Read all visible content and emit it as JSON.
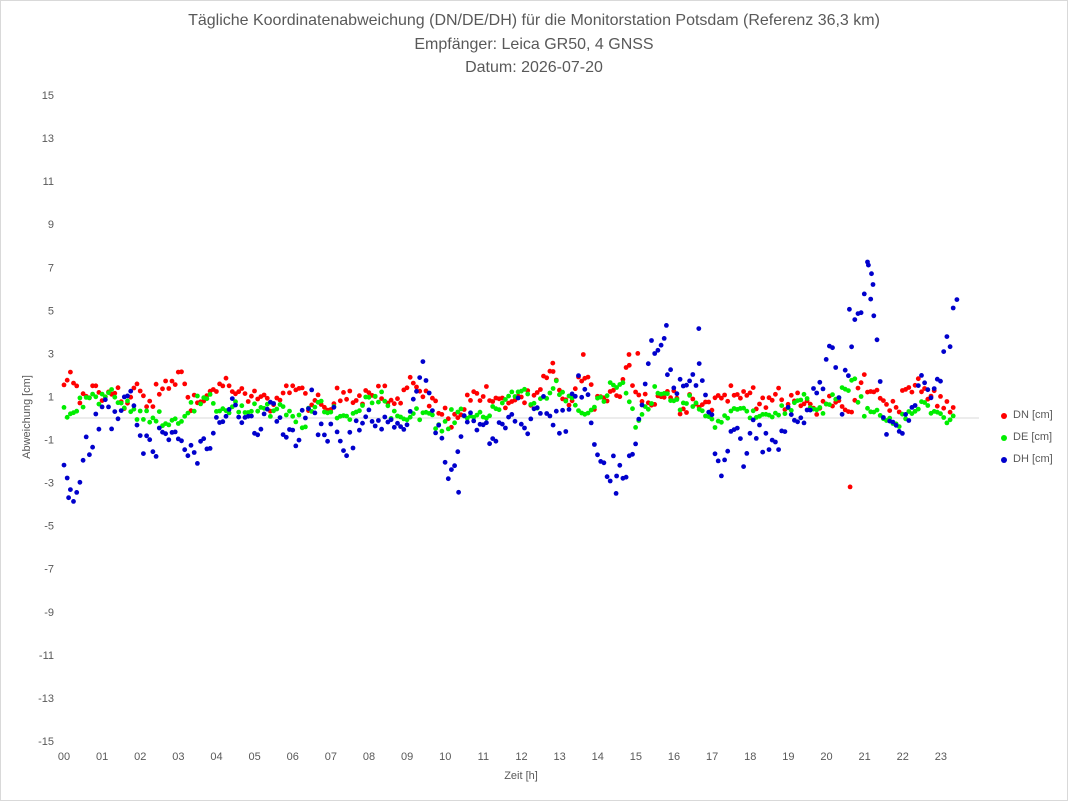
{
  "chart_data": {
    "type": "scatter",
    "title": "Tägliche Koordinatenabweichung (DN/DE/DH) für die Monitorstation Potsdam (Referenz 36,3 km)",
    "subtitle_1": "Empfänger: Leica GR50, 4 GNSS",
    "subtitle_2": "Datum: 2026-07-20",
    "xlabel": "Zeit [h]",
    "ylabel": "Abweichung [cm]",
    "xlim": [
      0,
      24
    ],
    "ylim": [
      -15,
      15
    ],
    "x_ticks": [
      "00",
      "01",
      "02",
      "03",
      "04",
      "05",
      "06",
      "07",
      "08",
      "09",
      "10",
      "11",
      "12",
      "13",
      "14",
      "15",
      "16",
      "17",
      "18",
      "19",
      "20",
      "21",
      "22",
      "23"
    ],
    "y_ticks": [
      15,
      13,
      11,
      9,
      7,
      5,
      3,
      1,
      -1,
      -3,
      -5,
      -7,
      -9,
      -11,
      -13,
      -15
    ],
    "legend_position": "right",
    "series": [
      {
        "name": "DN [cm]",
        "color": "#ff0000",
        "knots": [
          [
            0.0,
            1.3
          ],
          [
            0.2,
            2.0
          ],
          [
            0.4,
            0.8
          ],
          [
            0.8,
            1.4
          ],
          [
            1.0,
            0.9
          ],
          [
            1.3,
            1.6
          ],
          [
            1.6,
            0.4
          ],
          [
            1.9,
            1.4
          ],
          [
            2.2,
            0.6
          ],
          [
            2.5,
            1.2
          ],
          [
            2.8,
            1.6
          ],
          [
            3.05,
            2.1
          ],
          [
            3.3,
            1.0
          ],
          [
            3.6,
            0.6
          ],
          [
            3.9,
            1.4
          ],
          [
            4.2,
            1.6
          ],
          [
            4.5,
            1.2
          ],
          [
            4.8,
            0.8
          ],
          [
            5.1,
            1.0
          ],
          [
            5.4,
            0.6
          ],
          [
            5.7,
            1.2
          ],
          [
            6.0,
            1.4
          ],
          [
            6.3,
            1.0
          ],
          [
            6.6,
            0.6
          ],
          [
            6.9,
            0.3
          ],
          [
            7.2,
            1.0
          ],
          [
            7.5,
            1.3
          ],
          [
            7.8,
            0.9
          ],
          [
            8.1,
            1.5
          ],
          [
            8.4,
            1.1
          ],
          [
            8.7,
            0.6
          ],
          [
            9.0,
            1.3
          ],
          [
            9.3,
            1.6
          ],
          [
            9.6,
            0.8
          ],
          [
            9.9,
            0.2
          ],
          [
            10.2,
            0.0
          ],
          [
            10.5,
            0.6
          ],
          [
            10.8,
            1.2
          ],
          [
            11.1,
            1.0
          ],
          [
            11.4,
            0.6
          ],
          [
            11.7,
            0.8
          ],
          [
            12.0,
            1.0
          ],
          [
            12.3,
            0.6
          ],
          [
            12.6,
            1.6
          ],
          [
            12.8,
            2.2
          ],
          [
            13.0,
            1.0
          ],
          [
            13.3,
            0.8
          ],
          [
            13.6,
            2.0
          ],
          [
            13.9,
            1.0
          ],
          [
            14.2,
            0.8
          ],
          [
            14.5,
            0.9
          ],
          [
            14.8,
            2.8
          ],
          [
            15.0,
            1.2
          ],
          [
            15.3,
            0.8
          ],
          [
            15.6,
            1.0
          ],
          [
            15.9,
            1.2
          ],
          [
            16.2,
            0.6
          ],
          [
            16.5,
            1.0
          ],
          [
            16.8,
            0.6
          ],
          [
            17.1,
            0.8
          ],
          [
            17.4,
            1.2
          ],
          [
            17.7,
            0.9
          ],
          [
            18.0,
            1.3
          ],
          [
            18.3,
            0.8
          ],
          [
            18.6,
            1.0
          ],
          [
            18.9,
            0.6
          ],
          [
            19.2,
            0.8
          ],
          [
            19.5,
            0.6
          ],
          [
            19.8,
            0.4
          ],
          [
            20.1,
            0.9
          ],
          [
            20.4,
            0.6
          ],
          [
            20.6,
            0.0
          ],
          [
            20.8,
            1.2
          ],
          [
            21.0,
            1.8
          ],
          [
            21.3,
            1.0
          ],
          [
            21.6,
            0.6
          ],
          [
            21.9,
            0.8
          ],
          [
            22.2,
            1.6
          ],
          [
            22.5,
            1.2
          ],
          [
            22.8,
            1.0
          ],
          [
            23.1,
            0.6
          ],
          [
            23.4,
            0.2
          ]
        ],
        "outliers": [
          [
            20.62,
            -3.2
          ],
          [
            15.05,
            3.0
          ],
          [
            14.82,
            2.95
          ],
          [
            13.62,
            2.95
          ],
          [
            12.82,
            2.55
          ]
        ]
      },
      {
        "name": "DE [cm]",
        "color": "#00ee00",
        "knots": [
          [
            0.0,
            0.2
          ],
          [
            0.3,
            0.3
          ],
          [
            0.6,
            1.2
          ],
          [
            0.9,
            0.8
          ],
          [
            1.2,
            1.4
          ],
          [
            1.5,
            0.6
          ],
          [
            1.8,
            0.3
          ],
          [
            2.1,
            0.0
          ],
          [
            2.4,
            0.2
          ],
          [
            2.7,
            -0.2
          ],
          [
            3.0,
            0.0
          ],
          [
            3.3,
            0.4
          ],
          [
            3.6,
            0.8
          ],
          [
            3.9,
            0.6
          ],
          [
            4.2,
            0.4
          ],
          [
            4.5,
            0.6
          ],
          [
            4.8,
            0.3
          ],
          [
            5.1,
            0.5
          ],
          [
            5.4,
            0.2
          ],
          [
            5.7,
            0.4
          ],
          [
            6.0,
            0.0
          ],
          [
            6.3,
            -0.2
          ],
          [
            6.6,
            0.6
          ],
          [
            6.9,
            0.2
          ],
          [
            7.2,
            0.3
          ],
          [
            7.5,
            0.0
          ],
          [
            7.8,
            0.6
          ],
          [
            8.1,
            1.1
          ],
          [
            8.4,
            0.8
          ],
          [
            8.7,
            0.2
          ],
          [
            9.0,
            0.0
          ],
          [
            9.3,
            0.4
          ],
          [
            9.6,
            0.0
          ],
          [
            9.9,
            -0.6
          ],
          [
            10.2,
            0.0
          ],
          [
            10.5,
            0.3
          ],
          [
            10.8,
            0.0
          ],
          [
            11.1,
            0.3
          ],
          [
            11.4,
            0.6
          ],
          [
            11.7,
            0.8
          ],
          [
            12.0,
            1.4
          ],
          [
            12.3,
            0.6
          ],
          [
            12.6,
            0.9
          ],
          [
            12.9,
            1.5
          ],
          [
            13.2,
            1.0
          ],
          [
            13.5,
            0.6
          ],
          [
            13.8,
            0.2
          ],
          [
            14.1,
            0.8
          ],
          [
            14.4,
            1.4
          ],
          [
            14.7,
            1.6
          ],
          [
            15.0,
            -0.4
          ],
          [
            15.3,
            0.4
          ],
          [
            15.6,
            1.4
          ],
          [
            15.9,
            1.0
          ],
          [
            16.2,
            0.6
          ],
          [
            16.5,
            0.8
          ],
          [
            16.8,
            0.2
          ],
          [
            17.1,
            -0.2
          ],
          [
            17.4,
            0.0
          ],
          [
            17.7,
            0.4
          ],
          [
            18.0,
            0.2
          ],
          [
            18.3,
            0.4
          ],
          [
            18.6,
            0.2
          ],
          [
            18.9,
            0.3
          ],
          [
            19.2,
            0.6
          ],
          [
            19.5,
            0.8
          ],
          [
            19.8,
            0.4
          ],
          [
            20.1,
            0.8
          ],
          [
            20.4,
            1.0
          ],
          [
            20.7,
            1.6
          ],
          [
            21.0,
            0.4
          ],
          [
            21.3,
            0.3
          ],
          [
            21.6,
            0.0
          ],
          [
            21.9,
            -0.4
          ],
          [
            22.2,
            0.2
          ],
          [
            22.5,
            0.6
          ],
          [
            22.8,
            0.3
          ],
          [
            23.1,
            0.0
          ],
          [
            23.4,
            0.2
          ]
        ],
        "outliers": []
      },
      {
        "name": "DH [cm]",
        "color": "#0000cc",
        "knots": [
          [
            0.0,
            -2.6
          ],
          [
            0.15,
            -3.4
          ],
          [
            0.4,
            -2.8
          ],
          [
            0.6,
            -1.6
          ],
          [
            0.8,
            -0.6
          ],
          [
            1.1,
            0.2
          ],
          [
            1.4,
            -0.2
          ],
          [
            1.7,
            1.6
          ],
          [
            2.0,
            -1.0
          ],
          [
            2.3,
            -1.6
          ],
          [
            2.6,
            -1.0
          ],
          [
            2.9,
            -0.6
          ],
          [
            3.2,
            -1.6
          ],
          [
            3.5,
            -1.8
          ],
          [
            3.8,
            -1.2
          ],
          [
            4.1,
            -0.8
          ],
          [
            4.4,
            0.6
          ],
          [
            4.7,
            0.0
          ],
          [
            5.0,
            -0.4
          ],
          [
            5.3,
            0.4
          ],
          [
            5.6,
            0.0
          ],
          [
            5.9,
            -1.2
          ],
          [
            6.2,
            -0.4
          ],
          [
            6.5,
            0.6
          ],
          [
            6.8,
            -1.4
          ],
          [
            7.1,
            0.0
          ],
          [
            7.4,
            -1.6
          ],
          [
            7.7,
            -0.6
          ],
          [
            8.0,
            0.0
          ],
          [
            8.3,
            -0.6
          ],
          [
            8.6,
            0.0
          ],
          [
            8.9,
            -0.4
          ],
          [
            9.2,
            1.0
          ],
          [
            9.4,
            2.2
          ],
          [
            9.7,
            0.0
          ],
          [
            10.0,
            -2.2
          ],
          [
            10.2,
            -2.8
          ],
          [
            10.4,
            -0.8
          ],
          [
            10.7,
            -0.2
          ],
          [
            11.0,
            -0.6
          ],
          [
            11.3,
            -1.2
          ],
          [
            11.6,
            -0.2
          ],
          [
            11.9,
            0.4
          ],
          [
            12.2,
            -0.2
          ],
          [
            12.5,
            1.0
          ],
          [
            12.8,
            0.2
          ],
          [
            13.1,
            -0.2
          ],
          [
            13.4,
            0.8
          ],
          [
            13.7,
            1.4
          ],
          [
            13.9,
            -1.2
          ],
          [
            14.2,
            -2.4
          ],
          [
            14.5,
            -2.2
          ],
          [
            14.7,
            -2.6
          ],
          [
            14.9,
            -1.8
          ],
          [
            15.1,
            -0.4
          ],
          [
            15.4,
            3.0
          ],
          [
            15.6,
            4.0
          ],
          [
            15.8,
            2.6
          ],
          [
            16.1,
            1.0
          ],
          [
            16.4,
            1.8
          ],
          [
            16.7,
            2.4
          ],
          [
            17.0,
            0.0
          ],
          [
            17.2,
            -2.6
          ],
          [
            17.5,
            -0.6
          ],
          [
            17.8,
            -1.4
          ],
          [
            18.1,
            -0.8
          ],
          [
            18.4,
            -1.2
          ],
          [
            18.7,
            -1.4
          ],
          [
            19.0,
            0.4
          ],
          [
            19.3,
            0.0
          ],
          [
            19.6,
            1.0
          ],
          [
            19.9,
            1.8
          ],
          [
            20.1,
            3.2
          ],
          [
            20.4,
            0.6
          ],
          [
            20.6,
            2.8
          ],
          [
            20.8,
            4.6
          ],
          [
            21.0,
            5.8
          ],
          [
            21.1,
            7.0
          ],
          [
            21.3,
            3.8
          ],
          [
            21.5,
            0.0
          ],
          [
            21.7,
            -0.6
          ],
          [
            21.9,
            -0.8
          ],
          [
            22.2,
            0.4
          ],
          [
            22.5,
            1.6
          ],
          [
            22.8,
            1.2
          ],
          [
            23.0,
            2.2
          ],
          [
            23.2,
            3.8
          ],
          [
            23.4,
            5.4
          ]
        ],
        "outliers": [
          [
            0.12,
            -3.7
          ],
          [
            21.1,
            7.1
          ],
          [
            21.18,
            6.7
          ],
          [
            21.22,
            6.2
          ],
          [
            23.42,
            5.5
          ],
          [
            14.48,
            -3.5
          ],
          [
            10.35,
            -3.45
          ],
          [
            16.65,
            4.15
          ],
          [
            15.8,
            4.3
          ],
          [
            20.6,
            5.05
          ]
        ]
      }
    ]
  }
}
